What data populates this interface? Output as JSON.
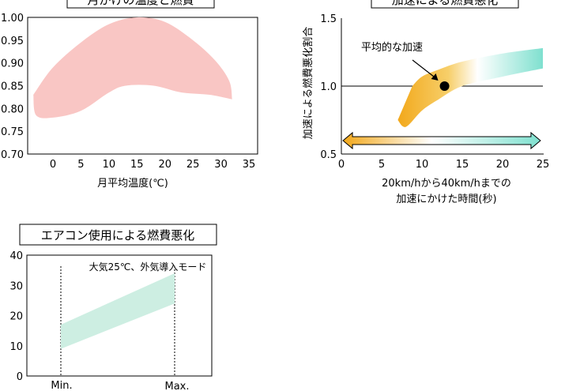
{
  "chart_data": [
    {
      "type": "area",
      "title_visible_fragment": "月がけの温度と燃費",
      "xlabel": "月平均温度(℃)",
      "ylabel": "",
      "xlim": [
        -5,
        35
      ],
      "ylim": [
        0.7,
        1.0
      ],
      "xticks": [
        "0",
        "5",
        "10",
        "15",
        "20",
        "25",
        "30",
        "35"
      ],
      "yticks": [
        "0.70",
        "0.75",
        "0.80",
        "0.85",
        "0.90",
        "0.95",
        "1.00"
      ],
      "band_color": "#f9c6c4",
      "series": [
        {
          "upper": [
            [
              -3.5,
              0.83
            ],
            [
              0,
              0.89
            ],
            [
              5,
              0.945
            ],
            [
              10,
              0.985
            ],
            [
              15,
              1.0
            ],
            [
              20,
              0.99
            ],
            [
              25,
              0.95
            ],
            [
              29,
              0.905
            ],
            [
              31.5,
              0.86
            ],
            [
              32,
              0.82
            ]
          ],
          "lower": [
            [
              -3.5,
              0.83
            ],
            [
              -3,
              0.785
            ],
            [
              0,
              0.78
            ],
            [
              5,
              0.795
            ],
            [
              10,
              0.835
            ],
            [
              13,
              0.85
            ],
            [
              18,
              0.85
            ],
            [
              23,
              0.835
            ],
            [
              28,
              0.83
            ],
            [
              32,
              0.82
            ]
          ]
        }
      ]
    },
    {
      "type": "area",
      "title_visible_fragment": "加速による燃費悪化",
      "xlabel": "20km/hから40km/hまでの\n加速にかけた時間(秒)",
      "xlabel_lines": [
        "20km/hから40km/hまでの",
        "加速にかけた時間(秒)"
      ],
      "ylabel": "加速による燃費悪化割合",
      "xlim": [
        0,
        25
      ],
      "ylim": [
        0.5,
        1.5
      ],
      "xticks": [
        "0",
        "5",
        "10",
        "15",
        "20",
        "25"
      ],
      "yticks": [
        "0.5",
        "1.0",
        "1.5"
      ],
      "reference_line": 1.0,
      "annotation": "平均的な加速",
      "marker": {
        "x": 12.8,
        "y": 1.0
      },
      "gradient_colors": [
        "#f2a81b",
        "#7fe0cf"
      ],
      "band": {
        "upper": [
          [
            8.8,
            1.0
          ],
          [
            10,
            1.07
          ],
          [
            12,
            1.12
          ],
          [
            15,
            1.18
          ],
          [
            20,
            1.24
          ],
          [
            25,
            1.28
          ]
        ],
        "lower": [
          [
            7,
            0.75
          ],
          [
            8,
            0.7
          ],
          [
            10,
            0.82
          ],
          [
            12,
            0.9
          ],
          [
            15,
            1.0
          ],
          [
            20,
            1.07
          ],
          [
            25,
            1.13
          ]
        ]
      },
      "arrow_range": [
        0.2,
        24.7
      ]
    },
    {
      "type": "area",
      "title": "エアコン使用による燃費悪化",
      "annotation": "大気25℃、外気導入モード",
      "xlabel": "",
      "ylabel": "",
      "ylim": [
        0,
        40
      ],
      "yticks": [
        "0",
        "10",
        "20",
        "30",
        "40"
      ],
      "xticks": [
        "Min.",
        "Max."
      ],
      "band_color": "#cdeee2",
      "band": {
        "upper": [
          [
            0,
            17
          ],
          [
            1,
            34
          ]
        ],
        "lower": [
          [
            0,
            9
          ],
          [
            1,
            24
          ]
        ]
      }
    }
  ]
}
